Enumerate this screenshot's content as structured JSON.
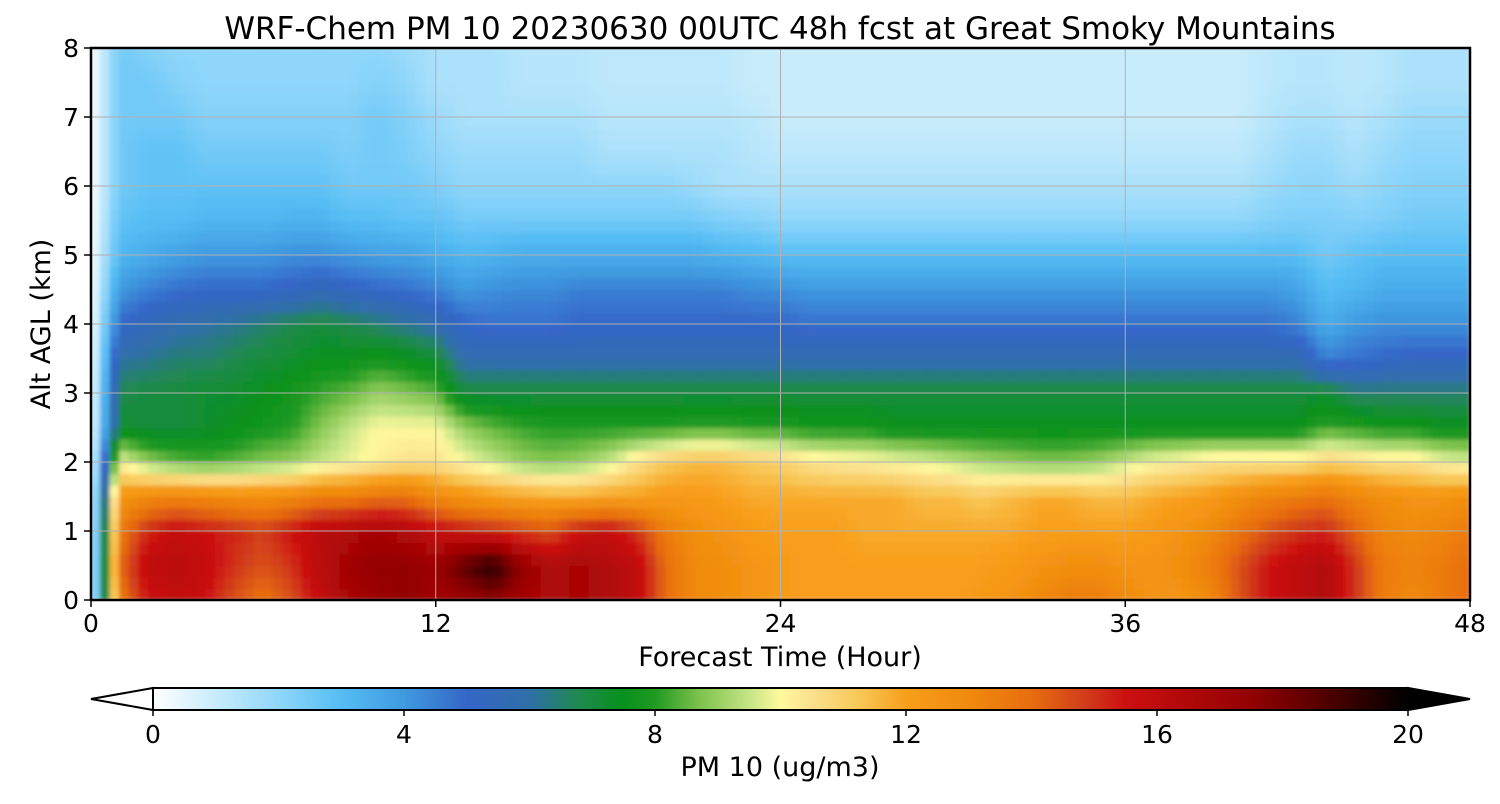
{
  "chart_data": {
    "type": "heatmap",
    "title": "WRF-Chem PM 10  20230630 00UTC 48h fcst at Great Smoky Mountains",
    "xlabel": "Forecast Time (Hour)",
    "ylabel": "Alt AGL (km)",
    "xlim": [
      0,
      48
    ],
    "ylim": [
      0,
      8
    ],
    "xticks": [
      "0",
      "12",
      "24",
      "36",
      "48"
    ],
    "yticks": [
      "0",
      "1",
      "2",
      "3",
      "4",
      "5",
      "6",
      "7",
      "8"
    ],
    "grid": true,
    "x_hours": [
      0,
      1,
      2,
      3,
      4,
      5,
      6,
      7,
      8,
      9,
      10,
      11,
      12,
      13,
      14,
      15,
      16,
      17,
      18,
      19,
      20,
      21,
      22,
      23,
      24,
      25,
      26,
      27,
      28,
      29,
      30,
      31,
      32,
      33,
      34,
      35,
      36,
      37,
      38,
      39,
      40,
      41,
      42,
      43,
      44,
      45,
      46,
      47,
      48
    ],
    "y_km": [
      0,
      0.5,
      1,
      1.5,
      2,
      2.5,
      3,
      3.5,
      4,
      4.5,
      5,
      5.5,
      6,
      6.5,
      7,
      7.5,
      8
    ],
    "pm10_ugm3": [
      [
        0.0,
        13.5,
        15.5,
        15.8,
        15.5,
        14.5,
        13.8,
        14.5,
        15.8,
        16.8,
        17.2,
        17.5,
        17.0,
        17.2,
        17.5,
        17.0,
        16.5,
        16.8,
        16.5,
        16.0,
        14.0,
        13.0,
        12.8,
        12.5,
        12.2,
        12.0,
        12.0,
        12.0,
        12.0,
        12.0,
        12.0,
        12.2,
        12.5,
        13.0,
        13.5,
        13.5,
        13.0,
        12.5,
        12.5,
        13.0,
        14.5,
        15.5,
        16.0,
        16.5,
        15.0,
        13.5,
        13.0,
        13.5,
        14.0
      ],
      [
        0.0,
        14.0,
        16.0,
        16.2,
        15.8,
        15.0,
        14.5,
        15.0,
        16.2,
        17.0,
        17.5,
        17.5,
        17.2,
        18.5,
        19.5,
        17.5,
        16.5,
        16.8,
        16.5,
        16.0,
        14.0,
        13.0,
        12.8,
        12.5,
        12.2,
        12.0,
        12.0,
        12.0,
        12.0,
        12.0,
        12.0,
        12.0,
        12.2,
        12.5,
        12.8,
        12.8,
        12.5,
        12.5,
        12.8,
        13.5,
        14.5,
        15.5,
        16.0,
        16.5,
        15.0,
        13.5,
        13.2,
        13.5,
        14.0
      ],
      [
        0.0,
        13.5,
        15.2,
        15.8,
        15.5,
        15.2,
        14.8,
        15.5,
        16.2,
        16.5,
        16.8,
        16.5,
        15.8,
        15.5,
        15.2,
        14.8,
        14.5,
        15.5,
        15.8,
        15.0,
        13.5,
        12.8,
        12.5,
        12.2,
        12.0,
        12.0,
        12.0,
        11.8,
        11.8,
        11.8,
        11.8,
        11.8,
        11.8,
        12.0,
        12.0,
        12.0,
        12.0,
        12.2,
        12.5,
        13.0,
        13.8,
        14.5,
        15.0,
        15.2,
        14.2,
        13.2,
        13.0,
        13.2,
        13.5
      ],
      [
        0.0,
        12.5,
        13.0,
        13.2,
        13.0,
        12.8,
        12.8,
        13.0,
        13.5,
        13.5,
        13.8,
        13.8,
        13.0,
        12.5,
        12.2,
        12.0,
        11.8,
        11.8,
        12.0,
        12.0,
        12.2,
        12.2,
        12.0,
        11.8,
        11.8,
        11.8,
        11.8,
        11.8,
        11.8,
        11.5,
        11.5,
        11.2,
        11.5,
        11.8,
        11.8,
        11.5,
        11.5,
        11.8,
        12.0,
        12.2,
        12.8,
        13.2,
        13.5,
        13.8,
        13.2,
        12.8,
        12.5,
        12.5,
        12.8
      ],
      [
        0.0,
        10.0,
        9.0,
        8.5,
        8.3,
        8.5,
        8.8,
        9.0,
        9.5,
        9.8,
        10.2,
        10.5,
        10.5,
        10.0,
        9.5,
        9.0,
        8.8,
        9.0,
        9.5,
        10.5,
        11.2,
        11.5,
        11.5,
        11.2,
        11.0,
        10.5,
        10.3,
        10.2,
        10.0,
        9.8,
        9.5,
        9.2,
        9.0,
        8.8,
        8.8,
        9.0,
        9.5,
        10.0,
        10.2,
        10.5,
        10.5,
        10.5,
        10.5,
        11.0,
        10.8,
        10.5,
        10.5,
        10.0,
        9.8
      ],
      [
        0.0,
        7.2,
        7.0,
        7.0,
        7.2,
        7.5,
        7.8,
        8.0,
        8.8,
        9.5,
        10.0,
        10.0,
        10.0,
        9.0,
        8.5,
        8.2,
        8.0,
        8.0,
        8.0,
        8.0,
        8.0,
        8.2,
        8.2,
        8.0,
        8.0,
        7.8,
        7.8,
        7.8,
        7.5,
        7.5,
        7.5,
        7.5,
        7.5,
        7.5,
        7.5,
        7.5,
        7.5,
        7.5,
        7.5,
        7.5,
        7.5,
        7.5,
        7.5,
        8.2,
        8.0,
        7.8,
        7.8,
        7.5,
        7.5
      ],
      [
        0.0,
        6.8,
        7.0,
        7.0,
        7.2,
        7.2,
        7.5,
        7.8,
        8.2,
        8.5,
        9.0,
        8.8,
        8.5,
        7.0,
        7.0,
        7.0,
        7.0,
        7.0,
        7.0,
        7.0,
        7.0,
        7.0,
        7.0,
        7.0,
        7.0,
        7.0,
        7.0,
        7.0,
        7.0,
        7.0,
        7.0,
        7.0,
        7.0,
        7.0,
        7.0,
        7.0,
        7.0,
        7.0,
        7.0,
        7.0,
        7.0,
        7.0,
        7.0,
        7.2,
        6.5,
        6.5,
        6.5,
        6.5,
        6.5
      ],
      [
        0.0,
        6.0,
        6.2,
        6.5,
        6.5,
        6.8,
        7.0,
        7.2,
        7.5,
        7.5,
        7.8,
        7.5,
        7.2,
        5.8,
        5.8,
        5.8,
        5.8,
        5.8,
        5.8,
        5.8,
        5.8,
        5.8,
        5.8,
        5.8,
        5.8,
        5.8,
        5.8,
        5.8,
        5.8,
        5.8,
        5.8,
        5.8,
        5.8,
        5.8,
        5.8,
        5.8,
        5.8,
        5.8,
        5.8,
        5.8,
        5.8,
        5.8,
        5.8,
        4.5,
        4.8,
        5.0,
        5.2,
        5.2,
        5.2
      ],
      [
        0.0,
        5.0,
        5.5,
        5.8,
        6.0,
        6.2,
        6.5,
        6.8,
        7.0,
        6.8,
        6.5,
        6.2,
        5.8,
        5.0,
        4.8,
        4.8,
        4.8,
        5.0,
        5.0,
        5.0,
        5.0,
        5.0,
        5.0,
        5.0,
        5.0,
        4.8,
        4.8,
        4.8,
        4.8,
        4.8,
        4.8,
        4.8,
        4.8,
        4.8,
        4.8,
        4.8,
        4.8,
        4.8,
        4.8,
        4.8,
        4.8,
        4.8,
        4.5,
        3.5,
        4.0,
        4.2,
        4.2,
        4.2,
        4.2
      ],
      [
        0.0,
        4.0,
        4.5,
        4.8,
        5.0,
        5.0,
        5.0,
        5.2,
        5.5,
        5.2,
        5.0,
        4.8,
        4.5,
        4.0,
        4.2,
        4.3,
        4.3,
        4.5,
        4.5,
        4.5,
        4.5,
        4.5,
        4.5,
        4.3,
        4.2,
        4.0,
        4.0,
        4.0,
        4.0,
        4.0,
        4.0,
        4.0,
        4.0,
        4.0,
        4.0,
        4.0,
        4.0,
        4.0,
        4.0,
        4.0,
        4.0,
        4.0,
        3.8,
        3.0,
        3.2,
        3.5,
        3.5,
        3.5,
        3.5
      ],
      [
        0.0,
        3.2,
        3.5,
        3.8,
        4.0,
        4.0,
        4.0,
        4.2,
        4.2,
        4.0,
        3.8,
        3.8,
        3.5,
        3.2,
        3.3,
        3.5,
        3.5,
        3.5,
        3.5,
        3.5,
        3.5,
        3.5,
        3.3,
        3.2,
        3.0,
        3.0,
        3.0,
        3.0,
        3.0,
        3.0,
        3.0,
        3.0,
        3.0,
        3.0,
        3.0,
        3.0,
        3.0,
        3.0,
        3.0,
        3.0,
        3.0,
        3.0,
        3.0,
        2.5,
        2.8,
        3.0,
        3.0,
        3.0,
        3.0
      ],
      [
        0.0,
        2.8,
        3.0,
        3.0,
        3.2,
        3.2,
        3.2,
        3.3,
        3.3,
        3.0,
        3.0,
        2.8,
        2.8,
        2.5,
        2.5,
        2.5,
        2.5,
        2.5,
        2.5,
        2.5,
        2.5,
        2.5,
        2.3,
        2.2,
        2.0,
        2.0,
        2.0,
        2.0,
        2.0,
        2.0,
        2.0,
        2.0,
        2.0,
        2.0,
        2.0,
        2.0,
        2.0,
        2.0,
        2.0,
        2.0,
        2.0,
        2.2,
        2.3,
        2.3,
        2.2,
        2.3,
        2.5,
        2.5,
        2.5
      ],
      [
        0.0,
        2.5,
        2.8,
        2.8,
        2.8,
        2.8,
        2.8,
        2.8,
        2.8,
        2.5,
        2.5,
        2.5,
        2.3,
        2.0,
        2.0,
        2.0,
        2.0,
        2.0,
        2.0,
        2.0,
        2.0,
        1.8,
        1.5,
        1.5,
        1.5,
        1.5,
        1.5,
        1.5,
        1.5,
        1.5,
        1.5,
        1.5,
        1.5,
        1.5,
        1.5,
        1.5,
        1.5,
        1.5,
        1.5,
        1.5,
        1.5,
        1.8,
        2.0,
        2.0,
        1.8,
        2.0,
        2.2,
        2.2,
        2.2
      ],
      [
        0.0,
        2.5,
        2.8,
        2.8,
        2.5,
        2.5,
        2.5,
        2.5,
        2.5,
        2.3,
        2.5,
        2.3,
        2.0,
        1.8,
        1.8,
        1.8,
        1.8,
        1.8,
        1.5,
        1.5,
        1.5,
        1.5,
        1.5,
        1.3,
        1.2,
        1.2,
        1.2,
        1.2,
        1.2,
        1.2,
        1.2,
        1.2,
        1.2,
        1.2,
        1.2,
        1.2,
        1.2,
        1.2,
        1.2,
        1.2,
        1.2,
        1.5,
        1.8,
        1.8,
        1.5,
        1.8,
        2.0,
        2.0,
        2.0
      ],
      [
        0.0,
        2.5,
        2.5,
        2.5,
        2.2,
        2.2,
        2.2,
        2.2,
        2.2,
        2.2,
        2.5,
        2.2,
        1.8,
        1.5,
        1.5,
        1.5,
        1.5,
        1.5,
        1.3,
        1.3,
        1.3,
        1.3,
        1.3,
        1.2,
        1.0,
        1.0,
        1.0,
        1.0,
        1.0,
        1.0,
        1.0,
        1.0,
        1.0,
        1.0,
        1.0,
        1.0,
        1.0,
        1.0,
        1.0,
        1.0,
        1.0,
        1.3,
        1.5,
        1.5,
        1.3,
        1.5,
        1.8,
        1.8,
        1.8
      ],
      [
        0.0,
        2.5,
        2.5,
        2.2,
        2.0,
        2.0,
        2.0,
        2.0,
        2.0,
        2.0,
        2.2,
        2.0,
        1.5,
        1.5,
        1.5,
        1.3,
        1.3,
        1.3,
        1.2,
        1.2,
        1.2,
        1.2,
        1.2,
        1.0,
        1.0,
        1.0,
        1.0,
        1.0,
        1.0,
        1.0,
        1.0,
        1.0,
        1.0,
        1.0,
        1.0,
        1.0,
        1.0,
        1.0,
        1.0,
        1.0,
        1.0,
        1.2,
        1.3,
        1.3,
        1.2,
        1.3,
        1.5,
        1.5,
        1.5
      ],
      [
        0.0,
        2.5,
        2.2,
        2.0,
        2.0,
        2.0,
        2.0,
        2.0,
        2.0,
        2.0,
        2.0,
        1.8,
        1.5,
        1.5,
        1.5,
        1.3,
        1.3,
        1.3,
        1.2,
        1.2,
        1.2,
        1.2,
        1.2,
        1.0,
        1.0,
        1.0,
        1.0,
        1.0,
        1.0,
        1.0,
        1.0,
        1.0,
        1.0,
        1.0,
        1.0,
        1.0,
        1.0,
        1.0,
        1.0,
        1.0,
        1.0,
        1.2,
        1.3,
        1.3,
        1.2,
        1.3,
        1.5,
        1.5,
        1.5
      ]
    ],
    "colorbar": {
      "label": "PM 10  (ug/m3)",
      "vmin": 0,
      "vmax": 20,
      "ticks": [
        "0",
        "4",
        "8",
        "12",
        "16",
        "20"
      ],
      "extend": "both",
      "colormap": [
        [
          0,
          "#ffffff"
        ],
        [
          1,
          "#c8ecfb"
        ],
        [
          2,
          "#8fd6fa"
        ],
        [
          3,
          "#55bdf4"
        ],
        [
          4,
          "#3f9ae0"
        ],
        [
          5,
          "#3466c8"
        ],
        [
          6,
          "#2f6fa8"
        ],
        [
          6.8,
          "#1f8a4c"
        ],
        [
          7.5,
          "#07911c"
        ],
        [
          8,
          "#1f9a22"
        ],
        [
          8.7,
          "#7cc24b"
        ],
        [
          9.5,
          "#c5e585"
        ],
        [
          10,
          "#fff99d"
        ],
        [
          10.5,
          "#fbe08d"
        ],
        [
          11.3,
          "#f8c653"
        ],
        [
          12,
          "#f89e1b"
        ],
        [
          13,
          "#f08a0c"
        ],
        [
          14,
          "#e86d0e"
        ],
        [
          14.8,
          "#d2401b"
        ],
        [
          15.5,
          "#cc1010"
        ],
        [
          16.5,
          "#b00808"
        ],
        [
          17.5,
          "#930101"
        ],
        [
          18.5,
          "#5c0000"
        ],
        [
          19.3,
          "#2a0000"
        ],
        [
          20,
          "#000000"
        ]
      ]
    }
  }
}
